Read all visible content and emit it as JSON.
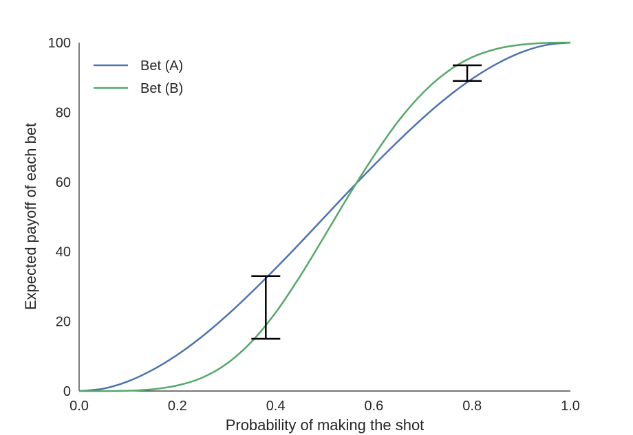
{
  "chart_data": {
    "type": "line",
    "title": "",
    "xlabel": "Probability of making the shot",
    "ylabel": "Expected payoff of each bet",
    "xlim": [
      0.0,
      1.0
    ],
    "ylim": [
      0,
      100
    ],
    "xticks": [
      0.0,
      0.2,
      0.4,
      0.6,
      0.8,
      1.0
    ],
    "xtick_labels": [
      "0.0",
      "0.2",
      "0.4",
      "0.6",
      "0.8",
      "1.0"
    ],
    "yticks": [
      0,
      20,
      40,
      60,
      80,
      100
    ],
    "ytick_labels": [
      "0",
      "20",
      "40",
      "60",
      "80",
      "100"
    ],
    "grid": false,
    "legend_position": "top-left",
    "series": [
      {
        "name": "Bet (A)",
        "color": "#4c72b0",
        "x": [
          0.0,
          0.05,
          0.1,
          0.15,
          0.2,
          0.25,
          0.3,
          0.35,
          0.4,
          0.45,
          0.5,
          0.55,
          0.6,
          0.65,
          0.7,
          0.75,
          0.8,
          0.85,
          0.9,
          0.95,
          1.0
        ],
        "y": [
          0,
          0.7,
          2.8,
          6.1,
          10.4,
          15.6,
          21.6,
          28.2,
          35.2,
          42.5,
          50.0,
          57.5,
          64.8,
          71.8,
          78.4,
          84.4,
          89.6,
          93.9,
          97.2,
          99.3,
          100
        ]
      },
      {
        "name": "Bet (B)",
        "color": "#55a868",
        "x": [
          0.0,
          0.05,
          0.1,
          0.15,
          0.2,
          0.25,
          0.3,
          0.35,
          0.4,
          0.45,
          0.5,
          0.55,
          0.6,
          0.65,
          0.7,
          0.75,
          0.8,
          0.85,
          0.9,
          0.95,
          1.0
        ],
        "y": [
          0,
          0.0,
          0.1,
          0.5,
          1.6,
          3.8,
          7.8,
          14.0,
          22.5,
          33.0,
          44.6,
          56.4,
          67.5,
          77.5,
          85.6,
          91.7,
          95.8,
          98.2,
          99.4,
          99.9,
          100
        ]
      }
    ],
    "error_bars": [
      {
        "x": 0.38,
        "y_low": 15,
        "y_high": 33
      },
      {
        "x": 0.79,
        "y_low": 89,
        "y_high": 93.5
      }
    ]
  }
}
